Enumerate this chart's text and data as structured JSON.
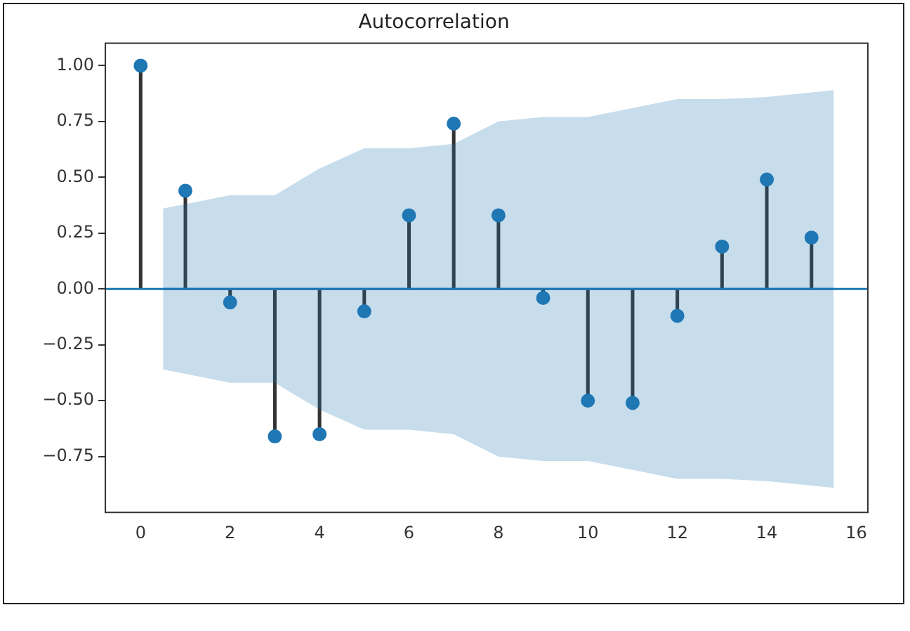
{
  "chart_data": {
    "type": "lollipop",
    "title": "Autocorrelation",
    "x": [
      0,
      1,
      2,
      3,
      4,
      5,
      6,
      7,
      8,
      9,
      10,
      11,
      12,
      13,
      14,
      15
    ],
    "series": [
      {
        "color": "#1f77b4",
        "values": [
          1.0,
          0.44,
          -0.06,
          -0.66,
          -0.65,
          -0.1,
          0.33,
          0.74,
          0.33,
          -0.04,
          -0.5,
          -0.51,
          -0.12,
          0.19,
          0.49,
          0.23
        ]
      },
      {
        "type": "line",
        "marker": "none",
        "color": "#1f77b4",
        "x": [
          0.5,
          1,
          2,
          3,
          4,
          5,
          6,
          7,
          8,
          9,
          10,
          11,
          12,
          13,
          14,
          15,
          15.5
        ],
        "values": [
          0,
          0,
          0,
          0,
          0,
          0,
          0,
          0,
          0,
          0,
          0,
          0,
          0,
          0,
          0,
          0,
          0
        ],
        "lower": [
          -0.36,
          -0.38,
          -0.42,
          -0.42,
          -0.54,
          -0.63,
          -0.63,
          -0.65,
          -0.75,
          -0.77,
          -0.77,
          -0.81,
          -0.85,
          -0.85,
          -0.86,
          -0.88,
          -0.89
        ],
        "upper": [
          0.36,
          0.38,
          0.42,
          0.42,
          0.54,
          0.63,
          0.63,
          0.65,
          0.75,
          0.77,
          0.77,
          0.81,
          0.85,
          0.85,
          0.86,
          0.88,
          0.89
        ]
      }
    ],
    "ref_lines": [
      {
        "axis": "y",
        "value": 0,
        "color": "#1f77b4"
      }
    ],
    "xlim": [
      -0.79,
      16.26
    ],
    "xticks": [
      0,
      2,
      4,
      6,
      8,
      10,
      12,
      14,
      16
    ],
    "ylim": [
      -1.0,
      1.1
    ],
    "yticks": [
      {
        "value": 1,
        "label": "1.00"
      },
      {
        "value": 0.75,
        "label": "0.75"
      },
      {
        "value": 0.5,
        "label": "0.50"
      },
      {
        "value": 0.25,
        "label": "0.25"
      },
      {
        "value": 0,
        "label": "0.00"
      },
      {
        "value": -0.25,
        "label": "−0.25"
      },
      {
        "value": -0.5,
        "label": "−0.50"
      },
      {
        "value": -0.75,
        "label": "−0.75"
      }
    ],
    "grid": false,
    "legend": false,
    "marker": "circle"
  }
}
